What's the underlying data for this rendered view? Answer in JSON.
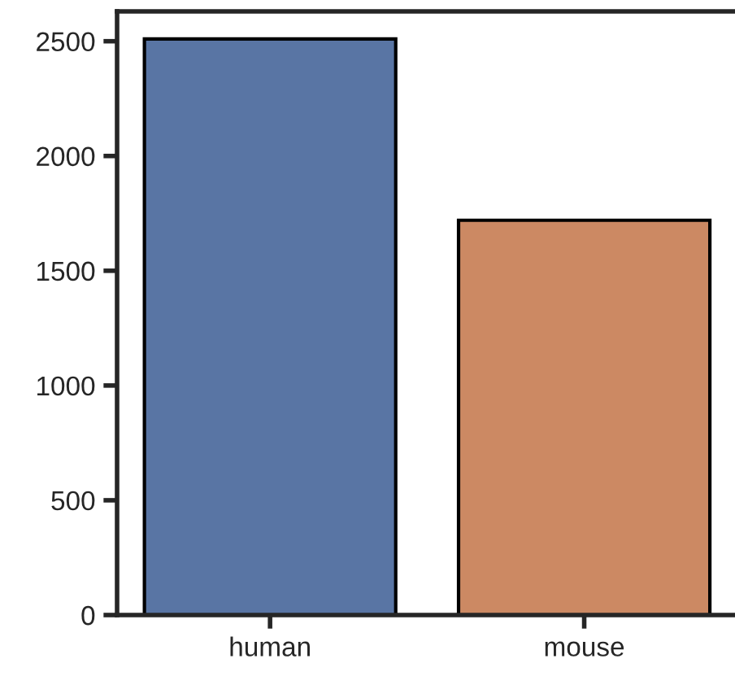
{
  "chart_data": {
    "type": "bar",
    "categories": [
      "human",
      "mouse"
    ],
    "values": [
      2510,
      1720
    ],
    "colors": [
      "#5975a4",
      "#cc8963"
    ],
    "ylim": [
      0,
      2630
    ],
    "yticks": [
      0,
      500,
      1000,
      1500,
      2000,
      2500
    ],
    "grid": false,
    "legend": false
  }
}
